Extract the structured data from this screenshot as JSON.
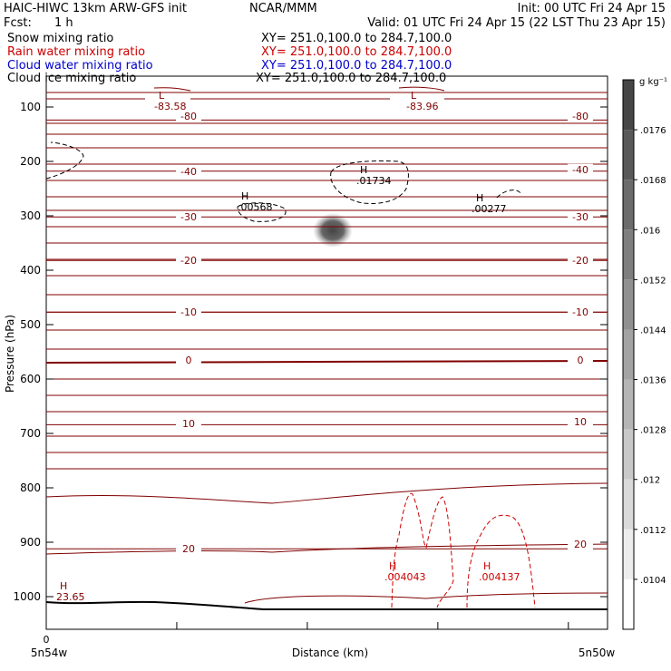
{
  "header": {
    "model_line": "HAIC-HIWC 13km ARW-GFS init",
    "center": "NCAR/MMM",
    "init": "Init: 00 UTC Fri 24 Apr 15",
    "fcst_label": "Fcst:",
    "fcst_value": "1 h",
    "valid": "Valid: 01 UTC Fri 24 Apr 15 (22 LST Thu 23 Apr 15)"
  },
  "fields": [
    {
      "name": "Snow mixing ratio",
      "xy": "XY= 251.0,100.0 to 284.7,100.0",
      "color": "#000000"
    },
    {
      "name": "Rain water mixing ratio",
      "xy": "XY= 251.0,100.0 to 284.7,100.0",
      "color": "#cc0000"
    },
    {
      "name": "Cloud water mixing ratio",
      "xy": "XY= 251.0,100.0 to 284.7,100.0",
      "color": "#0000cc"
    },
    {
      "name": "Cloud ice mixing ratio",
      "xy": "XY= 251.0,100.0 to 284.7,100.0",
      "color": "#000000"
    }
  ],
  "chart_data": {
    "type": "cross-section",
    "ylabel": "Pressure (hPa)",
    "xlabel": "Distance (km)",
    "yticks": [
      100,
      200,
      300,
      400,
      500,
      600,
      700,
      800,
      900,
      1000
    ],
    "ylim": [
      1050,
      50
    ],
    "xtick_left": "0",
    "x_endpoint_left": "5n54w",
    "x_endpoint_right": "5n50w",
    "colorbar": {
      "unit": "g kg⁻¹",
      "ticks": [
        ".0176",
        ".0168",
        ".016",
        ".0152",
        ".0144",
        ".0136",
        ".0128",
        ".012",
        ".0112",
        ".0104"
      ]
    },
    "temperature_contours": [
      {
        "value": -80,
        "p": 124
      },
      {
        "value": -40,
        "p": 218
      },
      {
        "value": -30,
        "p": 302
      },
      {
        "value": -20,
        "p": 382
      },
      {
        "value": -10,
        "p": 477
      },
      {
        "value": 0,
        "p": 566
      },
      {
        "value": 10,
        "p": 684
      },
      {
        "value": 20,
        "p": 912
      }
    ],
    "temperature_labels": [
      {
        "text": "-80",
        "side": "left",
        "p": 120
      },
      {
        "text": "-80",
        "side": "right",
        "p": 120
      },
      {
        "text": "-40",
        "side": "left",
        "p": 222
      },
      {
        "text": "-40",
        "side": "right",
        "p": 218
      },
      {
        "text": "-30",
        "side": "left",
        "p": 305
      },
      {
        "text": "-30",
        "side": "right",
        "p": 305
      },
      {
        "text": "-20",
        "side": "left",
        "p": 385
      },
      {
        "text": "-20",
        "side": "right",
        "p": 385
      },
      {
        "text": "-10",
        "side": "left",
        "p": 480
      },
      {
        "text": "-10",
        "side": "right",
        "p": 480
      },
      {
        "text": "0",
        "side": "left",
        "p": 568
      },
      {
        "text": "0",
        "side": "right",
        "p": 568
      },
      {
        "text": "10",
        "side": "left",
        "p": 685
      },
      {
        "text": "10",
        "side": "right",
        "p": 682
      },
      {
        "text": "20",
        "side": "left",
        "p": 915
      },
      {
        "text": "20",
        "side": "right",
        "p": 907
      }
    ],
    "extrema": [
      {
        "mark": "L",
        "value": "-83.58",
        "color": "#800000"
      },
      {
        "mark": "L",
        "value": "-83.96",
        "color": "#800000"
      },
      {
        "mark": "H",
        "value": ".01734",
        "color": "#000000"
      },
      {
        "mark": "H",
        "value": ".00568",
        "color": "#000000"
      },
      {
        "mark": "H",
        "value": ".00277",
        "color": "#000000"
      },
      {
        "mark": "H",
        "value": ".004043",
        "color": "#cc0000"
      },
      {
        "mark": "H",
        "value": ".004137",
        "color": "#cc0000"
      },
      {
        "mark": "H",
        "value": "23.65",
        "color": "#800000"
      }
    ]
  }
}
